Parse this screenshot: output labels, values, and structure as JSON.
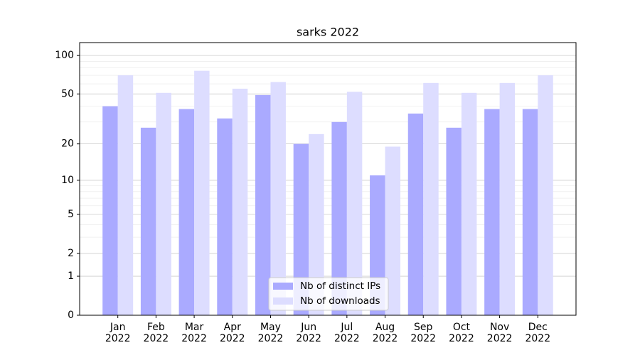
{
  "chart_data": {
    "type": "bar",
    "title": "sarks 2022",
    "categories": [
      "Jan\n2022",
      "Feb\n2022",
      "Mar\n2022",
      "Apr\n2022",
      "May\n2022",
      "Jun\n2022",
      "Jul\n2022",
      "Aug\n2022",
      "Sep\n2022",
      "Oct\n2022",
      "Nov\n2022",
      "Dec\n2022"
    ],
    "series": [
      {
        "name": "Nb of distinct IPs",
        "color": "#aaaaff",
        "values": [
          40,
          27,
          38,
          32,
          49,
          20,
          30,
          11,
          35,
          27,
          38,
          38
        ]
      },
      {
        "name": "Nb of downloads",
        "color": "#ddddff",
        "values": [
          70,
          51,
          76,
          55,
          62,
          24,
          52,
          19,
          61,
          51,
          61,
          70
        ]
      }
    ],
    "yscale": "log1p",
    "ylim": [
      0,
      126
    ],
    "yticks": [
      0,
      1,
      2,
      5,
      10,
      20,
      50,
      100
    ],
    "minor_yticks": [
      3,
      4,
      6,
      7,
      8,
      9,
      30,
      40,
      60,
      70,
      80,
      90
    ],
    "grid": true,
    "legend": "lower center"
  }
}
